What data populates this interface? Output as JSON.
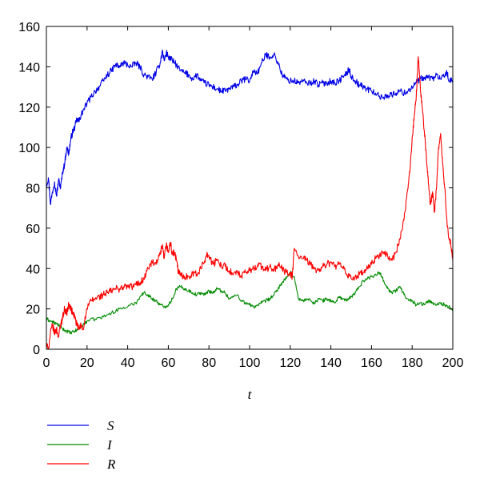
{
  "chart_data": {
    "type": "line",
    "title": "",
    "xlabel": "t",
    "ylabel": "",
    "xlim": [
      0,
      200
    ],
    "ylim": [
      0,
      160
    ],
    "xticks": [
      0,
      20,
      40,
      60,
      80,
      100,
      120,
      140,
      160,
      180,
      200
    ],
    "yticks": [
      0,
      20,
      40,
      60,
      80,
      100,
      120,
      140,
      160
    ],
    "grid": false,
    "legend_position": "below-left",
    "series": [
      {
        "name": "S",
        "color": "#0000e6",
        "x": [
          0,
          1,
          2,
          3,
          4,
          5,
          6,
          7,
          8,
          9,
          10,
          11,
          12,
          13,
          14,
          15,
          16,
          17,
          18,
          20,
          22,
          24,
          26,
          28,
          30,
          32,
          34,
          36,
          38,
          40,
          42,
          44,
          46,
          48,
          50,
          52,
          54,
          56,
          57,
          58,
          59,
          60,
          62,
          64,
          66,
          68,
          70,
          72,
          74,
          76,
          78,
          80,
          82,
          84,
          86,
          88,
          90,
          92,
          94,
          96,
          98,
          100,
          102,
          104,
          106,
          108,
          110,
          112,
          114,
          116,
          118,
          120,
          122,
          124,
          126,
          128,
          130,
          132,
          134,
          136,
          138,
          140,
          142,
          144,
          146,
          148,
          149,
          150,
          152,
          154,
          156,
          158,
          160,
          162,
          164,
          166,
          168,
          170,
          172,
          174,
          176,
          178,
          180,
          182,
          184,
          186,
          188,
          190,
          192,
          194,
          196,
          197,
          198,
          200
        ],
        "values": [
          81,
          85,
          72,
          78,
          83,
          76,
          84,
          80,
          88,
          92,
          100,
          97,
          104,
          108,
          110,
          114,
          113,
          116,
          118,
          122,
          125,
          128,
          130,
          133,
          136,
          138,
          141,
          140,
          142,
          141,
          140,
          142,
          140,
          136,
          135,
          134,
          137,
          142,
          148,
          143,
          147,
          145,
          143,
          141,
          138,
          137,
          136,
          134,
          136,
          133,
          132,
          131,
          130,
          129,
          128,
          128,
          129,
          130,
          131,
          133,
          134,
          133,
          138,
          137,
          142,
          146,
          145,
          146,
          142,
          136,
          134,
          133,
          133,
          132,
          133,
          132,
          132,
          133,
          131,
          132,
          132,
          133,
          132,
          133,
          135,
          137,
          139,
          135,
          133,
          131,
          130,
          129,
          128,
          127,
          125,
          125,
          126,
          126,
          127,
          128,
          127,
          128,
          130,
          132,
          134,
          134,
          135,
          134,
          136,
          134,
          135,
          138,
          133,
          133
        ]
      },
      {
        "name": "I",
        "color": "#008a00",
        "x": [
          0,
          2,
          4,
          6,
          8,
          10,
          12,
          14,
          16,
          18,
          20,
          24,
          28,
          32,
          36,
          40,
          44,
          46,
          48,
          50,
          52,
          54,
          56,
          58,
          60,
          62,
          64,
          66,
          68,
          70,
          72,
          74,
          76,
          78,
          80,
          82,
          84,
          86,
          88,
          90,
          92,
          94,
          96,
          98,
          100,
          102,
          104,
          106,
          108,
          110,
          112,
          114,
          116,
          118,
          120,
          122,
          124,
          126,
          128,
          130,
          132,
          134,
          136,
          138,
          140,
          142,
          144,
          146,
          148,
          150,
          152,
          154,
          156,
          158,
          160,
          162,
          164,
          166,
          168,
          170,
          172,
          174,
          176,
          178,
          180,
          182,
          184,
          186,
          188,
          190,
          192,
          194,
          196,
          198,
          200
        ],
        "values": [
          15,
          14,
          13,
          12,
          10,
          9,
          8,
          9,
          10,
          12,
          14,
          15,
          16,
          18,
          20,
          21,
          23,
          26,
          28,
          27,
          25,
          24,
          22,
          21,
          22,
          25,
          30,
          31,
          30,
          29,
          28,
          27,
          28,
          27,
          29,
          28,
          30,
          29,
          28,
          25,
          26,
          27,
          24,
          23,
          22,
          21,
          22,
          23,
          24,
          25,
          27,
          30,
          33,
          35,
          38,
          36,
          25,
          24,
          25,
          24,
          23,
          25,
          24,
          25,
          24,
          23,
          26,
          25,
          24,
          26,
          28,
          31,
          34,
          35,
          36,
          37,
          38,
          34,
          30,
          28,
          29,
          31,
          27,
          25,
          24,
          22,
          23,
          22,
          24,
          23,
          22,
          23,
          22,
          21,
          19
        ]
      },
      {
        "name": "R",
        "color": "#ff0000",
        "x": [
          0,
          1,
          2,
          3,
          4,
          5,
          6,
          7,
          8,
          9,
          10,
          11,
          12,
          13,
          14,
          15,
          16,
          17,
          18,
          20,
          22,
          24,
          26,
          28,
          30,
          32,
          34,
          36,
          38,
          40,
          42,
          44,
          46,
          48,
          50,
          52,
          54,
          56,
          57,
          58,
          59,
          60,
          61,
          62,
          63,
          64,
          65,
          66,
          68,
          70,
          72,
          74,
          76,
          78,
          79,
          80,
          82,
          84,
          86,
          88,
          90,
          92,
          94,
          96,
          98,
          100,
          102,
          104,
          106,
          108,
          110,
          112,
          114,
          116,
          118,
          120,
          121,
          122,
          124,
          126,
          128,
          130,
          132,
          134,
          136,
          138,
          140,
          142,
          144,
          146,
          148,
          150,
          152,
          154,
          156,
          158,
          160,
          162,
          164,
          166,
          168,
          170,
          172,
          174,
          176,
          178,
          179,
          180,
          181,
          182,
          183,
          184,
          185,
          186,
          187,
          188,
          189,
          190,
          191,
          192,
          193,
          194,
          195,
          196,
          197,
          198,
          199,
          200
        ],
        "values": [
          2,
          0,
          8,
          12,
          8,
          10,
          6,
          12,
          16,
          20,
          18,
          22,
          20,
          18,
          16,
          12,
          10,
          12,
          10,
          20,
          24,
          25,
          26,
          27,
          28,
          29,
          30,
          30,
          31,
          31,
          31,
          32,
          33,
          35,
          40,
          43,
          42,
          47,
          51,
          45,
          52,
          48,
          53,
          47,
          48,
          44,
          38,
          37,
          36,
          36,
          38,
          37,
          40,
          44,
          48,
          46,
          42,
          44,
          42,
          41,
          39,
          37,
          38,
          36,
          38,
          39,
          40,
          42,
          41,
          39,
          41,
          39,
          42,
          40,
          38,
          37,
          36,
          50,
          46,
          45,
          44,
          42,
          40,
          39,
          41,
          42,
          43,
          41,
          42,
          40,
          37,
          35,
          36,
          37,
          38,
          40,
          42,
          45,
          47,
          48,
          46,
          44,
          48,
          55,
          64,
          80,
          90,
          105,
          115,
          125,
          145,
          130,
          120,
          108,
          95,
          82,
          72,
          78,
          68,
          80,
          100,
          107,
          92,
          80,
          65,
          55,
          52,
          44
        ]
      }
    ]
  }
}
